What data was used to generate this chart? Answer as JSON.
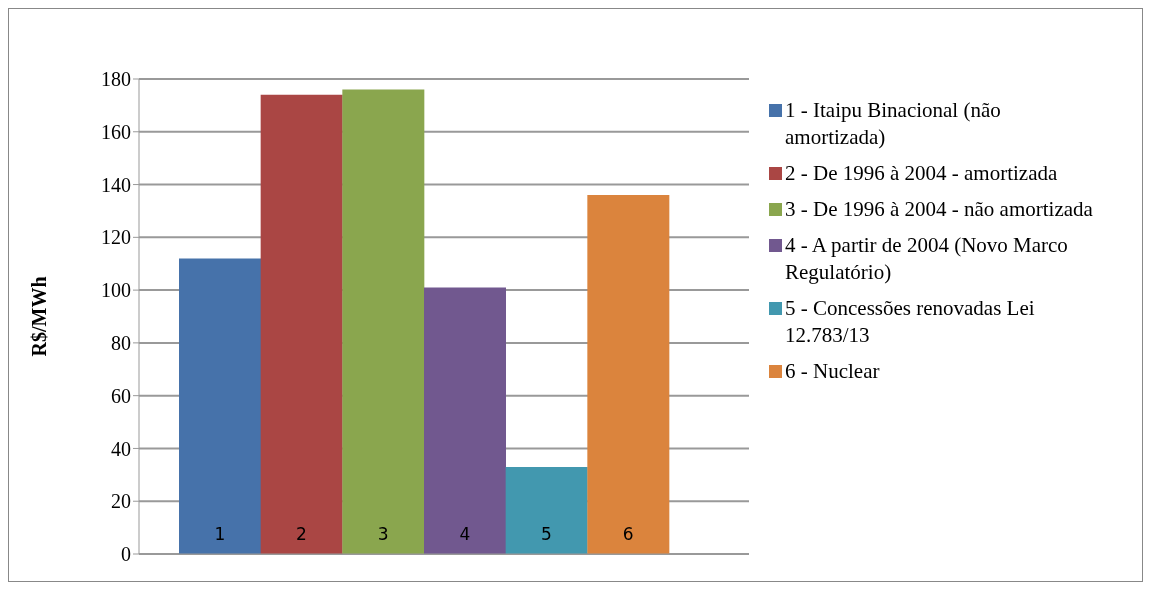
{
  "chart_data": {
    "type": "bar",
    "ylabel": "R$/MWh",
    "categories": [
      "1",
      "2",
      "3",
      "4",
      "5",
      "6"
    ],
    "stacked": true,
    "ylim": [
      0,
      180
    ],
    "yticks": [
      0,
      20,
      40,
      60,
      80,
      100,
      120,
      140,
      160,
      180
    ],
    "grid": "y",
    "legend": "right",
    "series": [
      {
        "name": "1 - Itaipu Binacional (não amortizada)",
        "color": "#4672aa",
        "values": [
          112,
          null,
          null,
          null,
          null,
          null
        ]
      },
      {
        "name": "2 - De 1996 à 2004 - amortizada",
        "color": "#aa4644",
        "values": [
          null,
          174,
          null,
          null,
          null,
          null
        ]
      },
      {
        "name": "3 - De 1996 à 2004 - não amortizada",
        "color": "#8aa64e",
        "values": [
          null,
          null,
          176,
          null,
          null,
          null
        ]
      },
      {
        "name": "4 - A partir de 2004 (Novo Marco Regulatório)",
        "color": "#71588f",
        "values": [
          null,
          null,
          null,
          101,
          null,
          null
        ]
      },
      {
        "name": "5 - Concessões renovadas Lei 12.783/13",
        "color": "#4298af",
        "values": [
          null,
          null,
          null,
          null,
          33,
          null
        ]
      },
      {
        "name": "6 - Nuclear",
        "color": "#db843d",
        "values": [
          null,
          null,
          null,
          null,
          null,
          136
        ]
      }
    ]
  }
}
